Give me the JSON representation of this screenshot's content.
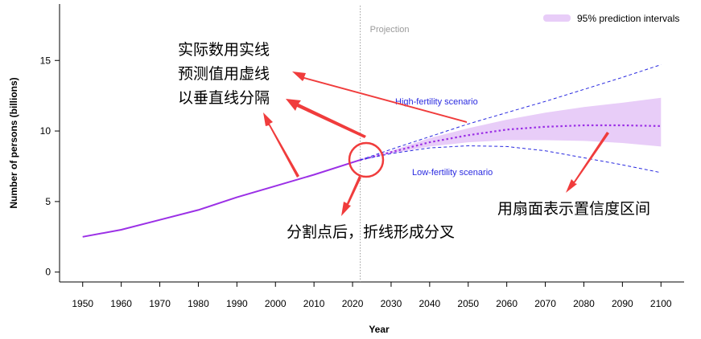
{
  "chart_data": {
    "type": "line",
    "xlabel": "Year",
    "ylabel": "Number of persons (billions)",
    "xlim": [
      1944,
      2106
    ],
    "ylim": [
      -0.7,
      19
    ],
    "xticks": [
      1950,
      1960,
      1970,
      1980,
      1990,
      2000,
      2010,
      2020,
      2030,
      2040,
      2050,
      2060,
      2070,
      2080,
      2090,
      2100
    ],
    "yticks": [
      0,
      5,
      10,
      15
    ],
    "projection_start": 2022,
    "projection_label": "Projection",
    "legend": {
      "label": "95% prediction intervals",
      "position": "top-right",
      "color": "#e8cdf8"
    },
    "observed": {
      "color": "#9b30e6",
      "x": [
        1950,
        1960,
        1970,
        1980,
        1990,
        2000,
        2010,
        2022
      ],
      "y": [
        2.5,
        3.0,
        3.7,
        4.4,
        5.3,
        6.1,
        6.9,
        7.95
      ]
    },
    "median": {
      "color": "#9b30e6",
      "x": [
        2022,
        2030,
        2040,
        2050,
        2060,
        2070,
        2080,
        2090,
        2100
      ],
      "y": [
        7.95,
        8.5,
        9.2,
        9.7,
        10.1,
        10.3,
        10.4,
        10.4,
        10.35
      ]
    },
    "interval": {
      "x": [
        2022,
        2030,
        2040,
        2050,
        2060,
        2070,
        2080,
        2090,
        2100
      ],
      "lower": [
        7.95,
        8.4,
        8.9,
        9.2,
        9.35,
        9.35,
        9.3,
        9.15,
        8.9
      ],
      "upper": [
        7.95,
        8.6,
        9.5,
        10.2,
        10.8,
        11.3,
        11.7,
        12.0,
        12.35
      ]
    },
    "scenarios": [
      {
        "name": "High-fertility scenario",
        "color": "#2a2ae0",
        "x": [
          2022,
          2030,
          2040,
          2050,
          2060,
          2070,
          2080,
          2090,
          2100
        ],
        "y": [
          7.95,
          8.7,
          9.6,
          10.5,
          11.3,
          12.1,
          12.95,
          13.8,
          14.7
        ]
      },
      {
        "name": "Low-fertility scenario",
        "color": "#2a2ae0",
        "x": [
          2022,
          2030,
          2040,
          2050,
          2060,
          2070,
          2080,
          2090,
          2100
        ],
        "y": [
          7.95,
          8.4,
          8.8,
          8.95,
          8.9,
          8.6,
          8.1,
          7.6,
          7.05
        ]
      }
    ]
  },
  "annotations": {
    "line_style_1": "实际数用实线",
    "line_style_2": "预测值用虚线",
    "line_style_3": "以垂直线分隔",
    "split_note": "分割点后，折线形成分叉",
    "fan_note": "用扇面表示置信度区间",
    "arrow_color": "#f03c3c"
  }
}
